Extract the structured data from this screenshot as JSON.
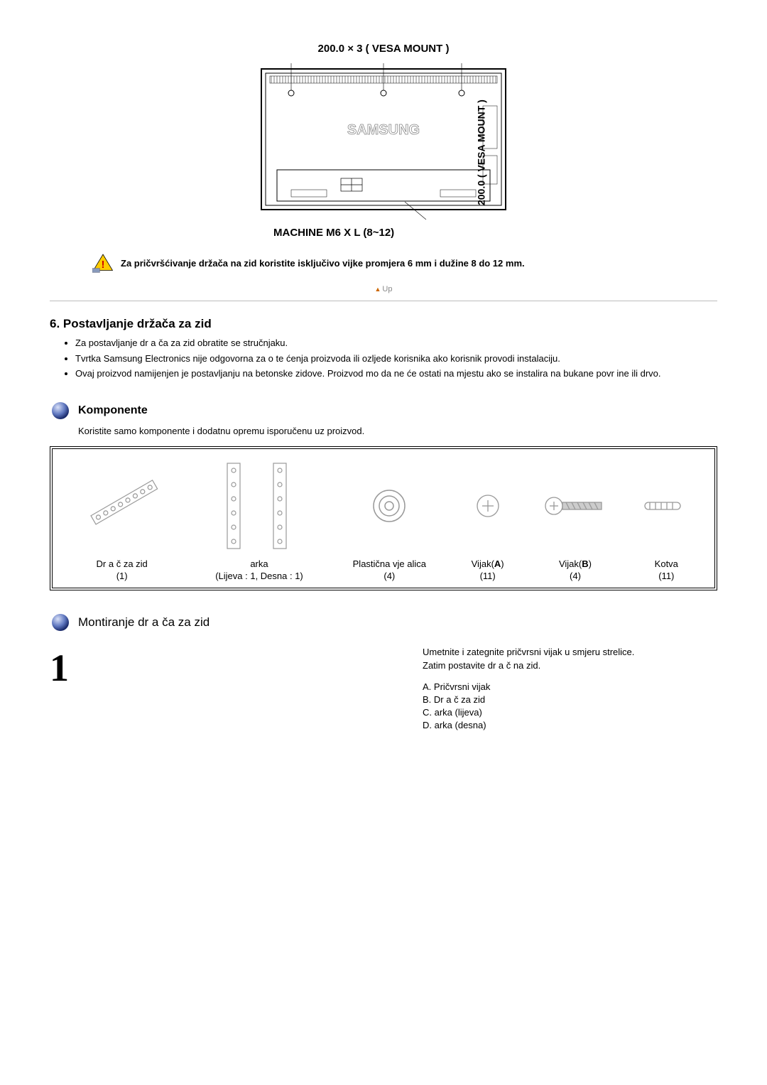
{
  "vesa": {
    "top_label": "200.0 × 3 ( VESA MOUNT )",
    "side_label": "200.0\n( VESA MOUNT )",
    "machine_label": "MACHINE M6 X L (8~12)",
    "brand_text": "SAMSUNG"
  },
  "warning": {
    "text": "Za pričvršćivanje držača na zid koristite isključivo vijke promjera 6 mm i dužine 8 do 12 mm."
  },
  "up_link": "Up",
  "section6": {
    "title": "6. Postavljanje držača za zid",
    "bullets": [
      "Za postavljanje dr a ča za zid obratite se stručnjaku.",
      "Tvrtka Samsung Electronics nije odgovorna za o te ćenja proizvoda ili ozljede korisnika ako korisnik provodi instalaciju.",
      "Ovaj proizvod namijenjen je postavljanju na betonske zidove. Proizvod mo da ne će ostati na mjestu ako se instalira na bukane povr ine ili drvo."
    ]
  },
  "components": {
    "heading": "Komponente",
    "subtext": "Koristite samo komponente i dodatnu opremu isporučenu uz proizvod.",
    "items": [
      {
        "label_line1": "Dr a č za zid",
        "label_line2": "(1)"
      },
      {
        "label_line1": "arka",
        "label_line2": "(Lijeva : 1, Desna : 1)"
      },
      {
        "label_line1": "Plastična vje alica",
        "label_line2": "(4)"
      },
      {
        "label_line1": "Vijak(<b>A</b>)",
        "label_line2": "(11)"
      },
      {
        "label_line1": "Vijak(<b>B</b>)",
        "label_line2": "(4)"
      },
      {
        "label_line1": "Kotva",
        "label_line2": "(11)"
      }
    ]
  },
  "mounting": {
    "heading": "Montiranje dr a ča za zid"
  },
  "step1": {
    "number": "1",
    "para1": "Umetnite i zategnite pričvrsni vijak u smjeru strelice.\nZatim postavite dr a č na zid.",
    "list": [
      "A. Pričvrsni vijak",
      "B. Dr a č za zid",
      "C.  arka (lijeva)",
      "D.  arka (desna)"
    ]
  },
  "colors": {
    "sphere_gradient_light": "#b8c8f0",
    "sphere_gradient_dark": "#2a3a8a",
    "warning_yellow": "#ffcc00",
    "warning_red": "#cc0000",
    "hr_color": "#bdbdbd"
  }
}
